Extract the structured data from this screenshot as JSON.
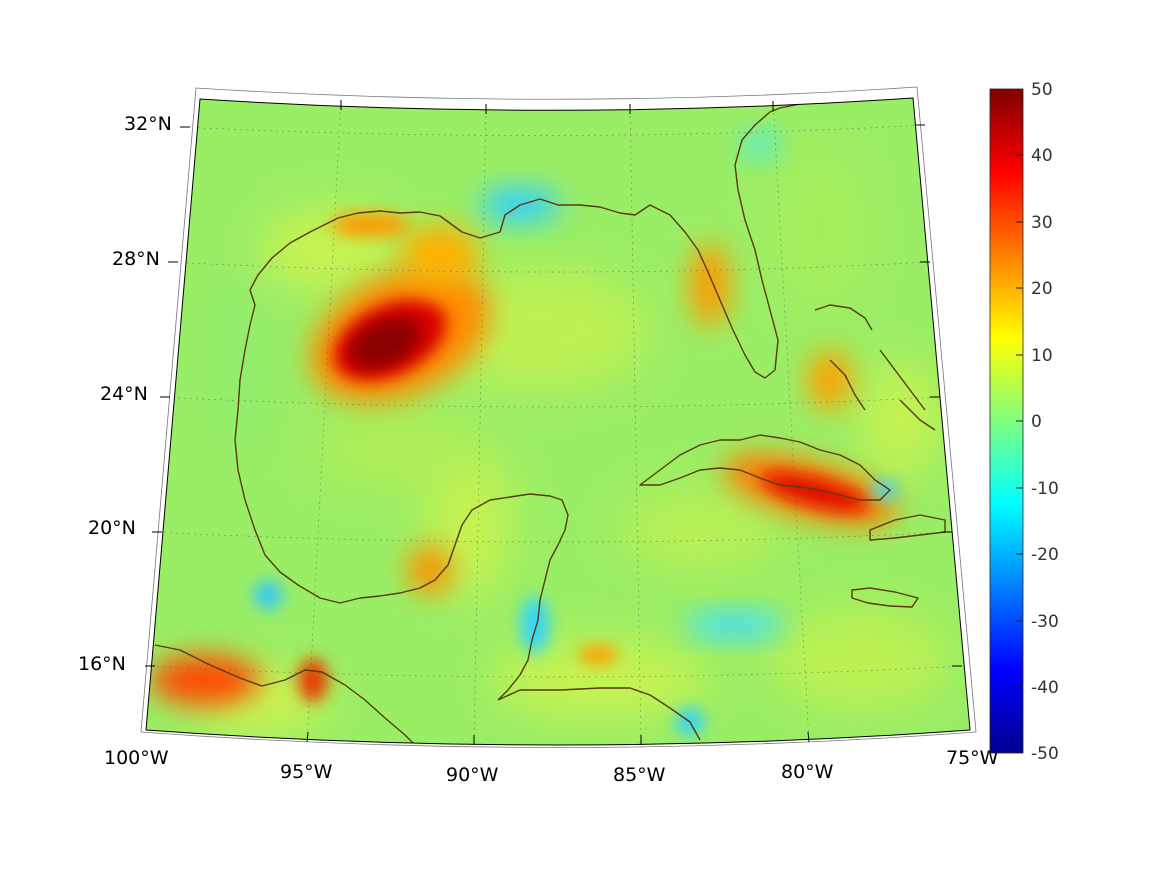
{
  "map": {
    "projection": "conic",
    "lon_range": [
      -100,
      -75
    ],
    "lat_range": [
      14,
      33
    ],
    "lon_ticks": [
      "100°W",
      "95°W",
      "90°W",
      "85°W",
      "80°W",
      "75°W"
    ],
    "lat_ticks": [
      "16°N",
      "20°N",
      "24°N",
      "28°N",
      "32°N"
    ],
    "grid": "dotted",
    "coastline_color": "#5a3a10",
    "anomalies": [
      {
        "area": "western Gulf of Mexico",
        "lon": -93.4,
        "lat": 25.8,
        "value": 50
      },
      {
        "area": "central Cuba",
        "lon": -79.2,
        "lat": 21.4,
        "value": 38
      },
      {
        "area": "southwest Florida",
        "lon": -82.3,
        "lat": 26.4,
        "value": 22
      },
      {
        "area": "northeast Gulf shelf",
        "lon": -87.8,
        "lat": 30.3,
        "value": -8
      },
      {
        "area": "Gulf of Honduras",
        "lon": -88.4,
        "lat": 16.6,
        "value": -10
      },
      {
        "area": "Caribbean south of Cuba",
        "lon": -82.0,
        "lat": 17.8,
        "value": -7
      },
      {
        "area": "Bay of Campeche",
        "lon": -95.6,
        "lat": 18.5,
        "value": -6
      },
      {
        "area": "Pacific coast of Oaxaca",
        "lon": -95.2,
        "lat": 16.0,
        "value": 30
      },
      {
        "area": "Guerrero coast",
        "lon": -98.8,
        "lat": 16.5,
        "value": 28
      }
    ]
  },
  "colorbar": {
    "colormap": "jet",
    "min": -50,
    "max": 50,
    "ticks": [
      "50",
      "40",
      "30",
      "20",
      "10",
      "0",
      "-10",
      "-20",
      "-30",
      "-40",
      "-50"
    ]
  }
}
